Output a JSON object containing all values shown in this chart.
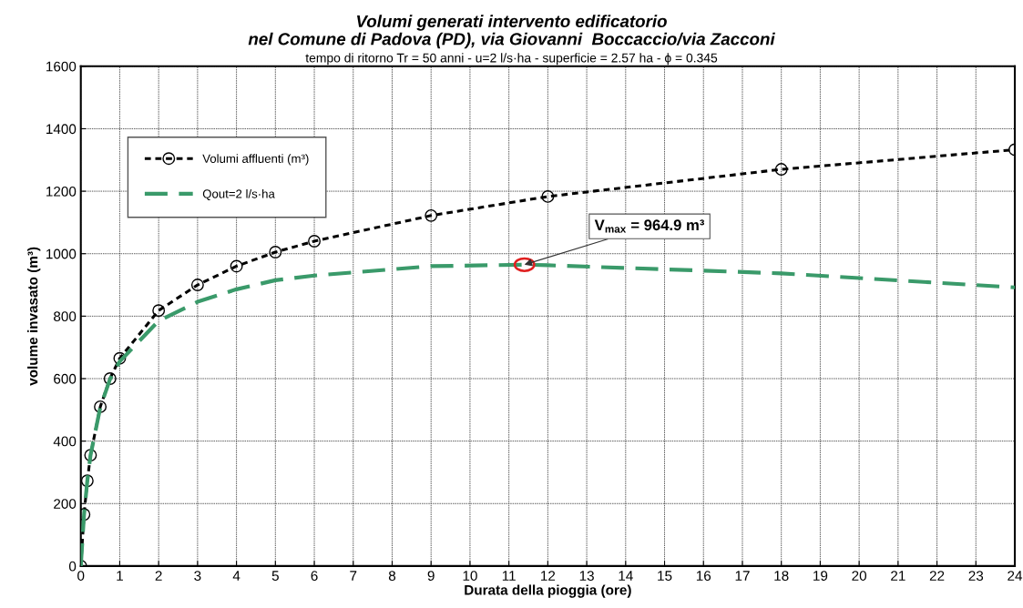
{
  "chart_data": {
    "type": "line",
    "title": "Volumi generati intervento edificatorio\nnel Comune di Padova (PD), via Giovanni  Boccaccio/via Zacconi",
    "subtitle": "tempo di ritorno Tr = 50 anni - u=2 l/s·ha - superficie = 2.57 ha - ϕ = 0.345",
    "xlabel": "Durata della pioggia (ore)",
    "ylabel": "volume invasato (m³)",
    "xlim": [
      0,
      24
    ],
    "ylim": [
      0,
      1600
    ],
    "xticks": [
      0,
      1,
      2,
      3,
      4,
      5,
      6,
      7,
      8,
      9,
      10,
      11,
      12,
      13,
      14,
      15,
      16,
      17,
      18,
      19,
      20,
      21,
      22,
      23,
      24
    ],
    "yticks": [
      0,
      200,
      400,
      600,
      800,
      1000,
      1200,
      1400,
      1600
    ],
    "grid": true,
    "legend": "top left",
    "series": [
      {
        "name": "Volumi affluenti (m³)",
        "color": "#000000",
        "marker": "circle",
        "line_style": "dotted",
        "x": [
          0,
          0.083,
          0.167,
          0.25,
          0.5,
          0.75,
          1,
          2,
          3,
          4,
          5,
          6,
          9,
          12,
          18,
          24
        ],
        "values": [
          0,
          165,
          273,
          355,
          510,
          600,
          665,
          818,
          900,
          960,
          1005,
          1040,
          1122,
          1183,
          1270,
          1333
        ]
      },
      {
        "name": "Qout=2 l/s·ha",
        "color": "#3a9a6a",
        "marker": "none",
        "line_style": "dashed",
        "x": [
          0,
          0.083,
          0.167,
          0.25,
          0.5,
          0.75,
          1,
          2,
          3,
          4,
          5,
          6,
          9,
          11.4,
          12,
          18,
          24
        ],
        "values": [
          0,
          165,
          273,
          355,
          508,
          598,
          655,
          785,
          846,
          886,
          915,
          930,
          960,
          964.9,
          963,
          937,
          892
        ]
      }
    ],
    "annotations": [
      {
        "text": "V$_{max}$ = 964.9 m³",
        "x": 11.4,
        "y": 964.9
      }
    ]
  }
}
